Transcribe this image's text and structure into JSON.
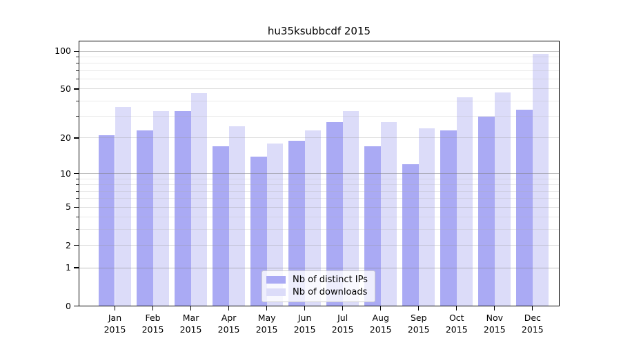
{
  "title": "hu35ksubbcdf 2015",
  "legend": {
    "items": [
      {
        "label": "Nb of distinct IPs",
        "color": "#aaaaf4"
      },
      {
        "label": "Nb of downloads",
        "color": "#dcdcf9"
      }
    ]
  },
  "chart_data": {
    "type": "bar",
    "title": "hu35ksubbcdf 2015",
    "categories": [
      "Jan",
      "Feb",
      "Mar",
      "Apr",
      "May",
      "Jun",
      "Jul",
      "Aug",
      "Sep",
      "Oct",
      "Nov",
      "Dec"
    ],
    "category_year": "2015",
    "series": [
      {
        "name": "Nb of distinct IPs",
        "color": "#aaaaf4",
        "values": [
          21,
          23,
          33,
          17,
          14,
          19,
          27,
          17,
          12,
          23,
          30,
          34
        ]
      },
      {
        "name": "Nb of downloads",
        "color": "#dcdcf9",
        "values": [
          36,
          33,
          46,
          25,
          18,
          23,
          33,
          27,
          24,
          43,
          47,
          95
        ]
      }
    ],
    "yscale": "log1p",
    "yticks": [
      0,
      1,
      2,
      5,
      10,
      20,
      50,
      100
    ],
    "ytick_decades": [
      1,
      10,
      100
    ],
    "ytick_minor": [
      3,
      4,
      6,
      7,
      8,
      9,
      30,
      40,
      60,
      70,
      80,
      90
    ],
    "ylim": [
      0,
      121
    ],
    "grid": true,
    "legend_position": "lower-center"
  }
}
